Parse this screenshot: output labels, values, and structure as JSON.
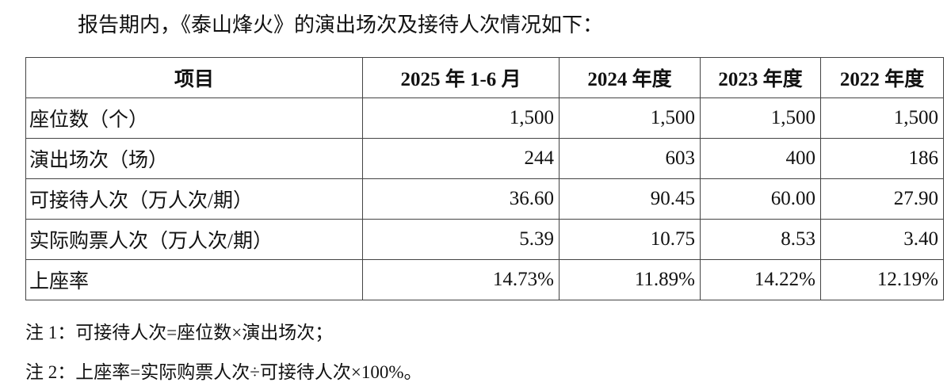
{
  "intro": "报告期内，《泰山烽火》的演出场次及接待人次情况如下：",
  "table": {
    "header": [
      "项目",
      "2025 年 1-6 月",
      "2024 年度",
      "2023 年度",
      "2022 年度"
    ],
    "rows": [
      [
        "座位数（个）",
        "1,500",
        "1,500",
        "1,500",
        "1,500"
      ],
      [
        "演出场次（场）",
        "244",
        "603",
        "400",
        "186"
      ],
      [
        "可接待人次（万人次/期）",
        "36.60",
        "90.45",
        "60.00",
        "27.90"
      ],
      [
        "实际购票人次（万人次/期）",
        "5.39",
        "10.75",
        "8.53",
        "3.40"
      ],
      [
        "上座率",
        "14.73%",
        "11.89%",
        "14.22%",
        "12.19%"
      ]
    ]
  },
  "notes": [
    "注 1：可接待人次=座位数×演出场次；",
    "注 2：上座率=实际购票人次÷可接待人次×100%。"
  ]
}
